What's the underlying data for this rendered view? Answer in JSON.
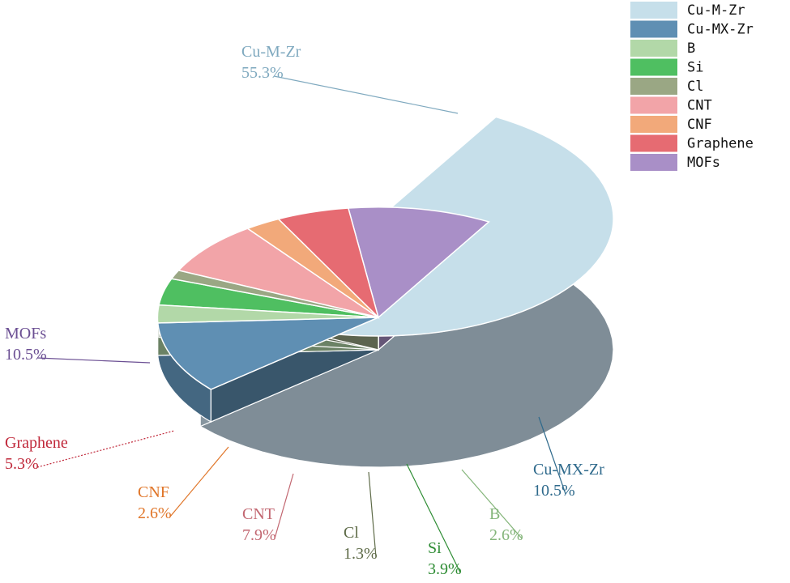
{
  "chart_data": {
    "type": "pie",
    "style": "3d-exploded",
    "legend_position": "top-right",
    "slices": [
      {
        "label": "Cu-M-Zr",
        "value": 55.3,
        "value_text": "55.3%",
        "color": "#c6dfea",
        "label_color": "#7fa9bf"
      },
      {
        "label": "Cu-MX-Zr",
        "value": 10.5,
        "value_text": "10.5%",
        "color": "#5f8fb3",
        "label_color": "#2f6a8c"
      },
      {
        "label": "B",
        "value": 2.6,
        "value_text": "2.6%",
        "color": "#b2d8a8",
        "label_color": "#84b57a"
      },
      {
        "label": "Si",
        "value": 3.9,
        "value_text": "3.9%",
        "color": "#4fbf61",
        "label_color": "#2e8c34"
      },
      {
        "label": "Cl",
        "value": 1.3,
        "value_text": "1.3%",
        "color": "#9aa784",
        "label_color": "#5e6b48"
      },
      {
        "label": "CNT",
        "value": 7.9,
        "value_text": "7.9%",
        "color": "#f2a4a8",
        "label_color": "#c26670"
      },
      {
        "label": "CNF",
        "value": 2.6,
        "value_text": "2.6%",
        "color": "#f2a97a",
        "label_color": "#e07528"
      },
      {
        "label": "Graphene",
        "value": 5.3,
        "value_text": "5.3%",
        "color": "#e66b72",
        "label_color": "#c0283a"
      },
      {
        "label": "MOFs",
        "value": 10.5,
        "value_text": "10.5%",
        "color": "#a98fc7",
        "label_color": "#6b4f93"
      }
    ]
  }
}
